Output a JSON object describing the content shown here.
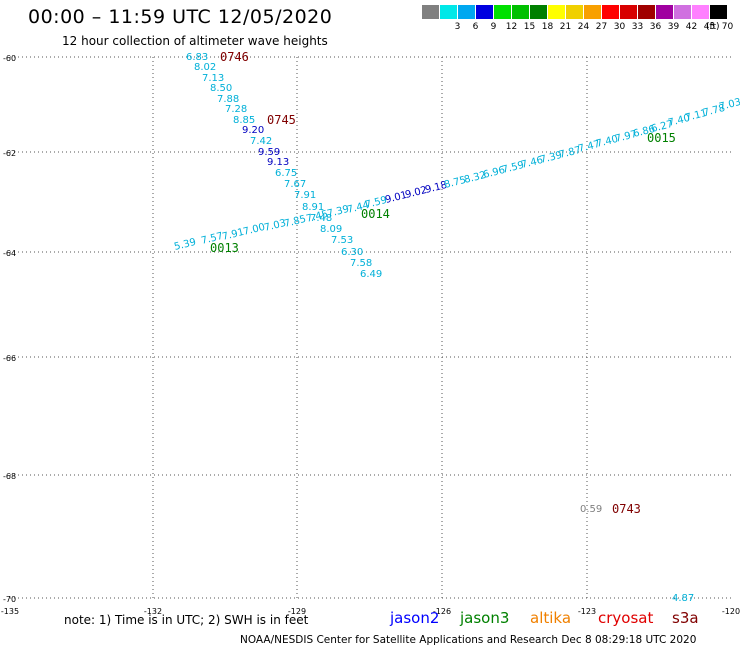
{
  "title": "00:00 – 11:59 UTC 12/05/2020",
  "subtitle": "12 hour collection of altimeter wave heights",
  "scale": {
    "colors": [
      "#808080",
      "#00e8e8",
      "#00a8f0",
      "#0000e0",
      "#00e000",
      "#00c000",
      "#008000",
      "#ffff00",
      "#f0d000",
      "#f8a000",
      "#ff0000",
      "#d80000",
      "#a00000",
      "#a000a0",
      "#d070e0",
      "#ff80ff",
      "#000000"
    ],
    "labels": [
      "",
      "3",
      "6",
      "9",
      "12",
      "15",
      "18",
      "21",
      "24",
      "27",
      "30",
      "33",
      "36",
      "39",
      "42",
      "45",
      "70"
    ],
    "unit": "(ft)"
  },
  "axes": {
    "lat_labels": [
      "-60",
      "-62",
      "-64",
      "-66",
      "-68",
      "-70"
    ],
    "lon_labels": [
      "-135",
      "-132",
      "-129",
      "-126",
      "-123",
      "-120"
    ]
  },
  "note": {
    "prefix": "note: 1) Time is in UTC; 2) SWH is in feet",
    "satellites": [
      {
        "name": "jason2",
        "color": "#0000ff"
      },
      {
        "name": "jason3",
        "color": "#008000"
      },
      {
        "name": "altika",
        "color": "#f08000"
      },
      {
        "name": "cryosat",
        "color": "#e00000"
      },
      {
        "name": "s3a",
        "color": "#800000"
      }
    ]
  },
  "credit": "NOAA/NESDIS Center for Satellite Applications and Research     Dec  8 08:29:18 UTC 2020",
  "passes": [
    {
      "label": "0746",
      "color": "#800000"
    },
    {
      "label": "0745",
      "color": "#800000"
    },
    {
      "label": "0015",
      "color": "#008000"
    },
    {
      "label": "0014",
      "color": "#008000"
    },
    {
      "label": "0013",
      "color": "#008000"
    },
    {
      "label": "0743",
      "color": "#800000"
    }
  ],
  "wave_heights": {
    "colors": {
      "cyan": "#00b0d8",
      "blue": "#0000c0",
      "gray": "#808080"
    },
    "track_nw": [
      {
        "v": "6.83",
        "c": "cyan"
      },
      {
        "v": "8.02",
        "c": "cyan"
      },
      {
        "v": "7.13",
        "c": "cyan"
      },
      {
        "v": "8.50",
        "c": "cyan"
      },
      {
        "v": "7.88",
        "c": "cyan"
      },
      {
        "v": "7.28",
        "c": "cyan"
      },
      {
        "v": "8.85",
        "c": "cyan"
      },
      {
        "v": "9.20",
        "c": "blue"
      },
      {
        "v": "7.42",
        "c": "cyan"
      },
      {
        "v": "9.59",
        "c": "blue"
      },
      {
        "v": "9.13",
        "c": "blue"
      },
      {
        "v": "6.75",
        "c": "cyan"
      },
      {
        "v": "7.67",
        "c": "cyan"
      },
      {
        "v": "7.91",
        "c": "cyan"
      },
      {
        "v": "8.91",
        "c": "cyan"
      },
      {
        "v": "7.48",
        "c": "cyan"
      },
      {
        "v": "8.09",
        "c": "cyan"
      },
      {
        "v": "7.53",
        "c": "cyan"
      },
      {
        "v": "6.30",
        "c": "cyan"
      },
      {
        "v": "7.58",
        "c": "cyan"
      },
      {
        "v": "6.49",
        "c": "cyan"
      }
    ],
    "track_ne": [
      {
        "v": "5.39",
        "c": "cyan"
      },
      {
        "v": "7.57",
        "c": "cyan"
      },
      {
        "v": "7.91",
        "c": "cyan"
      },
      {
        "v": "7.00",
        "c": "cyan"
      },
      {
        "v": "7.03",
        "c": "cyan"
      },
      {
        "v": "7.85",
        "c": "cyan"
      },
      {
        "v": "7.45",
        "c": "cyan"
      },
      {
        "v": "7.39",
        "c": "cyan"
      },
      {
        "v": "7.44",
        "c": "cyan"
      },
      {
        "v": "7.59",
        "c": "cyan"
      },
      {
        "v": "9.01",
        "c": "blue"
      },
      {
        "v": "9.02",
        "c": "blue"
      },
      {
        "v": "9.18",
        "c": "blue"
      },
      {
        "v": "8.75",
        "c": "cyan"
      },
      {
        "v": "8.32",
        "c": "cyan"
      },
      {
        "v": "6.96",
        "c": "cyan"
      },
      {
        "v": "7.59",
        "c": "cyan"
      },
      {
        "v": "7.46",
        "c": "cyan"
      },
      {
        "v": "7.39",
        "c": "cyan"
      },
      {
        "v": "7.87",
        "c": "cyan"
      },
      {
        "v": "7.47",
        "c": "cyan"
      },
      {
        "v": "7.40",
        "c": "cyan"
      },
      {
        "v": "7.97",
        "c": "cyan"
      },
      {
        "v": "6.86",
        "c": "cyan"
      },
      {
        "v": "6.27",
        "c": "cyan"
      },
      {
        "v": "7.40",
        "c": "cyan"
      },
      {
        "v": "7.11",
        "c": "cyan"
      },
      {
        "v": "7.78",
        "c": "cyan"
      },
      {
        "v": "7.03",
        "c": "cyan"
      }
    ],
    "isolated": [
      {
        "v": "0.59",
        "c": "gray"
      },
      {
        "v": "4.87",
        "c": "cyan"
      }
    ]
  }
}
